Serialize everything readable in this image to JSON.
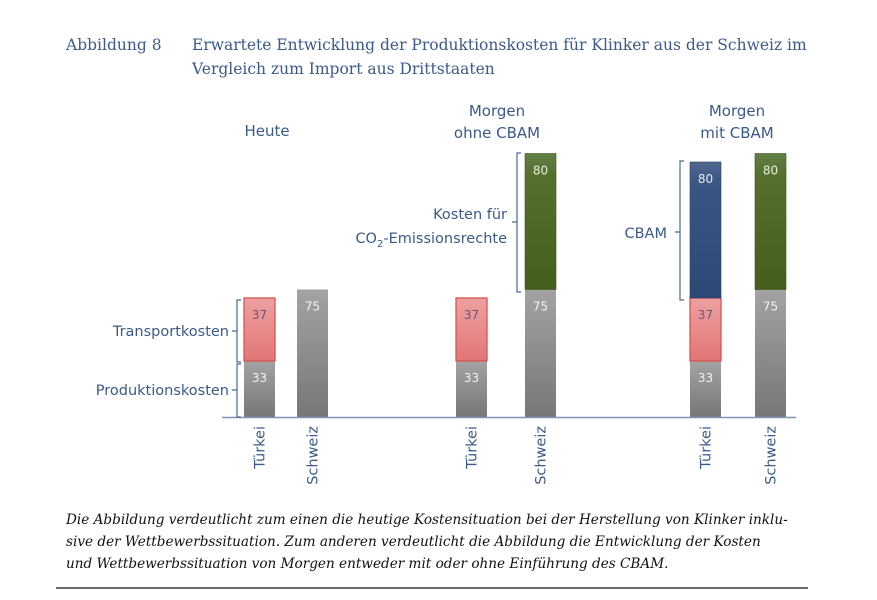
{
  "figure": {
    "label": "Abbildung 8",
    "title_line1": "Erwartete Entwicklung der Produktionskosten für Klinker aus der Schweiz im",
    "title_line2": "Vergleich zum Import aus Drittstaaten"
  },
  "description": {
    "line1": "Die Abbildung verdeutlicht zum einen die heutige Kostensituation bei der Herstellung von Klinker inklu-",
    "line2": "sive der Wettbewerbssituation. Zum anderen verdeutlicht die Abbildung die Entwicklung der Kosten",
    "line3": "und Wettbewerbssituation von Morgen entweder mit oder ohne Einführung des CBAM."
  },
  "colors": {
    "text_blue": "#3b5a8a",
    "grey": "#8c8c8c",
    "red_fill": "#e68a8a",
    "red_border": "#d9534f",
    "green": "#516d2b",
    "blue": "#3a5482",
    "axis": "#7f93b0"
  },
  "chart_data": {
    "type": "bar",
    "stacked": true,
    "title": "Erwartete Entwicklung der Produktionskosten für Klinker aus der Schweiz im Vergleich zum Import aus Drittstaaten",
    "xlabel": "",
    "ylabel": "",
    "grid": false,
    "groups": [
      {
        "label": [
          "Heute"
        ],
        "bars": [
          {
            "category": "Türkei",
            "segments": [
              {
                "name": "Produktionskosten",
                "value": 33,
                "color": "grey"
              },
              {
                "name": "Transportkosten",
                "value": 37,
                "color": "red"
              }
            ]
          },
          {
            "category": "Schweiz",
            "segments": [
              {
                "name": "Produktionskosten",
                "value": 75,
                "color": "grey"
              }
            ]
          }
        ]
      },
      {
        "label": [
          "Morgen",
          "ohne CBAM"
        ],
        "bars": [
          {
            "category": "Türkei",
            "segments": [
              {
                "name": "Produktionskosten",
                "value": 33,
                "color": "grey"
              },
              {
                "name": "Transportkosten",
                "value": 37,
                "color": "red"
              }
            ]
          },
          {
            "category": "Schweiz",
            "segments": [
              {
                "name": "Produktionskosten",
                "value": 75,
                "color": "grey"
              },
              {
                "name": "Kosten für CO2-Emissionsrechte",
                "value": 80,
                "color": "green"
              }
            ]
          }
        ]
      },
      {
        "label": [
          "Morgen",
          "mit CBAM"
        ],
        "bars": [
          {
            "category": "Türkei",
            "segments": [
              {
                "name": "Produktionskosten",
                "value": 33,
                "color": "grey"
              },
              {
                "name": "Transportkosten",
                "value": 37,
                "color": "red"
              },
              {
                "name": "CBAM",
                "value": 80,
                "color": "blue"
              }
            ]
          },
          {
            "category": "Schweiz",
            "segments": [
              {
                "name": "Produktionskosten",
                "value": 75,
                "color": "grey"
              },
              {
                "name": "Kosten für CO2-Emissionsrechte",
                "value": 80,
                "color": "green"
              }
            ]
          }
        ]
      }
    ],
    "annotations": {
      "transport": "Transportkosten",
      "production": "Produktionskosten",
      "co2_line1": "Kosten für",
      "co2_line2_prefix": "CO",
      "co2_line2_sub": "2",
      "co2_line2_suffix": "-Emissionsrechte",
      "cbam": "CBAM"
    }
  }
}
